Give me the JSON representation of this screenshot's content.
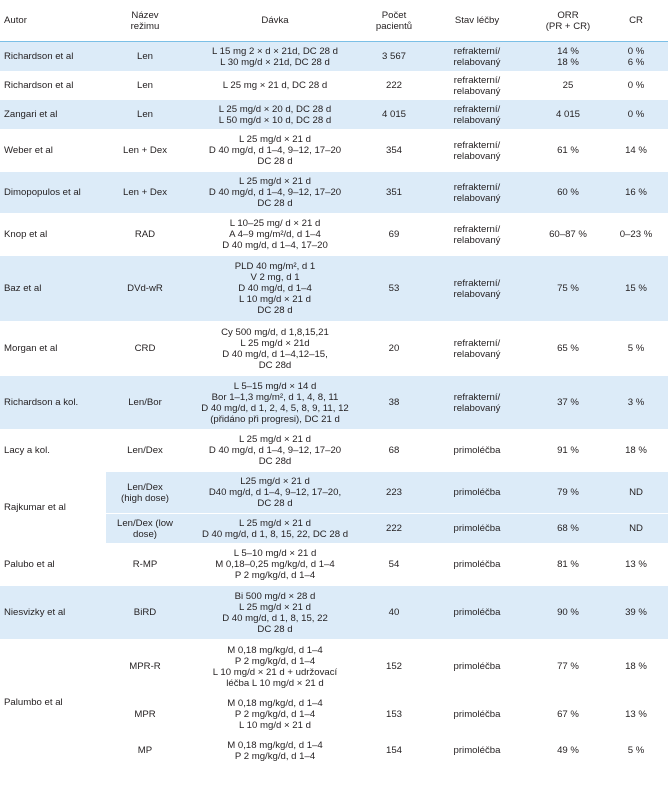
{
  "headers": {
    "autor": "Autor",
    "rezim": [
      "Název",
      "režimu"
    ],
    "davka": "Dávka",
    "pocet": [
      "Počet",
      "pacientů"
    ],
    "stav": "Stav léčby",
    "orr": [
      "ORR",
      "(PR + CR)"
    ],
    "cr": "CR"
  },
  "rows": [
    {
      "autor": "Richardson et al",
      "rezim": [
        "Len"
      ],
      "davka": [
        "L 15 mg 2 × d × 21d, DC 28 d",
        "L 30 mg/d × 21d, DC 28 d"
      ],
      "pocet": "3 567",
      "stav": [
        "refrakterní/",
        "relabovaný"
      ],
      "orr": [
        "14 %",
        "18 %"
      ],
      "cr": [
        "0 %",
        "6 %"
      ]
    },
    {
      "autor": "Richardson et al",
      "rezim": [
        "Len"
      ],
      "davka": [
        "L 25 mg × 21 d, DC 28 d"
      ],
      "pocet": "222",
      "stav": [
        "refrakterní/",
        "relabovaný"
      ],
      "orr": [
        "25"
      ],
      "cr": [
        "0 %"
      ]
    },
    {
      "autor": "Zangari et al",
      "rezim": [
        "Len"
      ],
      "davka": [
        "L 25 mg/d × 20 d, DC 28 d",
        "L 50 mg/d × 10 d, DC 28 d"
      ],
      "pocet": "4 015",
      "stav": [
        "refrakterní/",
        "relabovaný"
      ],
      "orr": [
        "4 015"
      ],
      "cr": [
        "0 %"
      ]
    },
    {
      "autor": "Weber et al",
      "rezim": [
        "Len + Dex"
      ],
      "davka": [
        "L 25 mg/d × 21 d",
        "D 40 mg/d, d 1–4, 9–12, 17–20",
        "DC 28 d"
      ],
      "pocet": "354",
      "stav": [
        "refrakterní/",
        "relabovaný"
      ],
      "orr": [
        "61 %"
      ],
      "cr": [
        "14 %"
      ]
    },
    {
      "autor": "Dimopopulos et al",
      "rezim": [
        "Len + Dex"
      ],
      "davka": [
        "L 25 mg/d × 21 d",
        "D 40 mg/d, d 1–4, 9–12, 17–20",
        "DC 28 d"
      ],
      "pocet": "351",
      "stav": [
        "refrakterní/",
        "relabovaný"
      ],
      "orr": [
        "60 %"
      ],
      "cr": [
        "16 %"
      ]
    },
    {
      "autor": "Knop et al",
      "rezim": [
        "RAD"
      ],
      "davka": [
        "L 10–25 mg/ d × 21 d",
        "A 4–9 mg/m²/d, d 1–4",
        "D 40 mg/d, d 1–4, 17–20"
      ],
      "pocet": "69",
      "stav": [
        "refrakterní/",
        "relabovaný"
      ],
      "orr": [
        "60–87 %"
      ],
      "cr": [
        "0–23 %"
      ]
    },
    {
      "autor": "Baz et al",
      "rezim": [
        "DVd-wR"
      ],
      "davka": [
        "PLD 40 mg/m², d 1",
        "V 2 mg, d 1",
        "D 40 mg/d, d 1–4",
        "L 10 mg/d × 21 d",
        "DC 28 d"
      ],
      "pocet": "53",
      "stav": [
        "refrakterní/",
        "relabovaný"
      ],
      "orr": [
        "75 %"
      ],
      "cr": [
        "15 %"
      ]
    },
    {
      "autor": "Morgan et al",
      "rezim": [
        "CRD"
      ],
      "davka": [
        "Cy 500 mg/d, d 1,8,15,21",
        "L 25 mg/d × 21d",
        "D 40 mg/d, d 1–4,12–15,",
        "DC 28d"
      ],
      "pocet": "20",
      "stav": [
        "refrakterní/",
        "relabovaný"
      ],
      "orr": [
        "65 %"
      ],
      "cr": [
        "5 %"
      ]
    },
    {
      "autor": "Richardson a kol.",
      "rezim": [
        "Len/Bor"
      ],
      "davka": [
        "L 5–15 mg/d × 14 d",
        "Bor 1–1,3 mg/m², d 1, 4, 8, 11",
        "D 40 mg/d, d 1, 2, 4, 5, 8, 9, 11, 12",
        "(přidáno při progresi), DC 21 d"
      ],
      "pocet": "38",
      "stav": [
        "refrakterní/",
        "relabovaný"
      ],
      "orr": [
        "37 %"
      ],
      "cr": [
        "3 %"
      ]
    },
    {
      "autor": "Lacy a kol.",
      "rezim": [
        "Len/Dex"
      ],
      "davka": [
        "L 25 mg/d × 21 d",
        "D 40 mg/d, d 1–4, 9–12, 17–20",
        "DC 28d"
      ],
      "pocet": "68",
      "stav": [
        "primoléčba"
      ],
      "orr": [
        "91 %"
      ],
      "cr": [
        "18 %"
      ]
    },
    {
      "autor": "Rajkumar et al",
      "rezim": [
        "Len/Dex",
        "(high dose)"
      ],
      "davka": [
        "L25 mg/d × 21 d",
        "D40 mg/d, d 1–4, 9–12, 17–20,",
        "DC 28 d"
      ],
      "pocet": "223",
      "stav": [
        "primoléčba"
      ],
      "orr": [
        "79 %"
      ],
      "cr": [
        "ND"
      ]
    },
    {
      "autor": "",
      "rezim": [
        "Len/Dex (low",
        "dose)"
      ],
      "davka": [
        "L 25 mg/d × 21 d",
        "D 40 mg/d, d 1, 8, 15, 22, DC 28 d"
      ],
      "pocet": "222",
      "stav": [
        "primoléčba"
      ],
      "orr": [
        "68 %"
      ],
      "cr": [
        "ND"
      ]
    },
    {
      "autor": "Palubo et al",
      "rezim": [
        "R-MP"
      ],
      "davka": [
        "L 5–10 mg/d × 21 d",
        "M 0,18–0,25 mg/kg/d, d 1–4",
        "P 2 mg/kg/d, d 1–4"
      ],
      "pocet": "54",
      "stav": [
        "primoléčba"
      ],
      "orr": [
        "81 %"
      ],
      "cr": [
        "13 %"
      ]
    },
    {
      "autor": "Niesvizky et al",
      "rezim": [
        "BiRD"
      ],
      "davka": [
        "Bi 500 mg/d × 28 d",
        "L 25 mg/d × 21 d",
        "D 40 mg/d, d 1, 8, 15, 22",
        "DC 28 d"
      ],
      "pocet": "40",
      "stav": [
        "primoléčba"
      ],
      "orr": [
        "90 %"
      ],
      "cr": [
        "39 %"
      ]
    },
    {
      "autor": "Palumbo et al",
      "rezim": [
        "MPR-R"
      ],
      "davka": [
        "M 0,18 mg/kg/d, d 1–4",
        "P 2 mg/kg/d, d 1–4",
        "L 10 mg/d × 21 d + udržovací",
        "léčba L 10 mg/d × 21 d"
      ],
      "pocet": "152",
      "stav": [
        "primoléčba"
      ],
      "orr": [
        "77 %"
      ],
      "cr": [
        "18 %"
      ]
    },
    {
      "autor": "",
      "rezim": [
        "MPR"
      ],
      "davka": [
        "M 0,18 mg/kg/d, d 1–4",
        "P 2 mg/kg/d, d 1–4",
        "L 10 mg/d × 21 d"
      ],
      "pocet": "153",
      "stav": [
        "primoléčba"
      ],
      "orr": [
        "67 %"
      ],
      "cr": [
        "13 %"
      ]
    },
    {
      "autor": "",
      "rezim": [
        "MP"
      ],
      "davka": [
        "M 0,18 mg/kg/d, d 1–4",
        "P 2 mg/kg/d, d 1–4"
      ],
      "pocet": "154",
      "stav": [
        "primoléčba"
      ],
      "orr": [
        "49 %"
      ],
      "cr": [
        "5 %"
      ]
    }
  ]
}
